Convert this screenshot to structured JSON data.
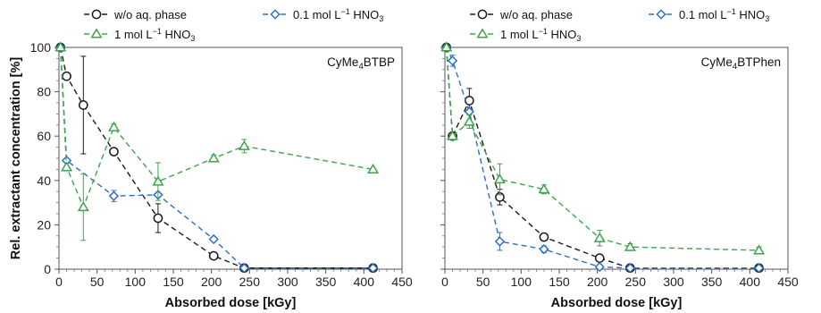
{
  "chart_data": [
    {
      "type": "line",
      "annotation": {
        "text": "CyMe",
        "sub": "4",
        "rest": "BTBP"
      },
      "xlabel": "Absorbed dose [kGy]",
      "ylabel": "Rel. extractant concentration [%]",
      "xlim": [
        0,
        450
      ],
      "ylim": [
        0,
        100
      ],
      "xticks": [
        "0",
        "50",
        "100",
        "150",
        "200",
        "250",
        "300",
        "350",
        "400",
        "450"
      ],
      "yticks": [
        "0",
        "20",
        "40",
        "60",
        "80",
        "100"
      ],
      "grid": false,
      "legend_position": "top",
      "series": [
        {
          "name": "w/o aq. phase",
          "color": "#1a1a1a",
          "marker": "circle",
          "x": [
            2,
            10,
            32,
            72,
            130,
            203,
            243,
            412
          ],
          "y": [
            100,
            87,
            74,
            53,
            23,
            6,
            0.5,
            0.5
          ],
          "err": [
            0,
            0,
            22,
            0,
            6.5,
            0,
            0,
            0
          ]
        },
        {
          "name_parts": [
            "0.1 mol L",
            "−1",
            " HNO",
            "3"
          ],
          "color": "#2e6fc4",
          "marker": "diamond",
          "x": [
            2,
            10,
            72,
            130,
            203,
            243,
            412
          ],
          "y": [
            100,
            49,
            33,
            33.5,
            13.5,
            0.5,
            0.5
          ],
          "err": [
            0,
            0,
            2.5,
            0,
            0,
            0,
            0
          ]
        },
        {
          "name_parts": [
            "1 mol L",
            "−1",
            " HNO",
            "3"
          ],
          "color": "#3fa34d",
          "marker": "triangle",
          "x": [
            2,
            10,
            32,
            72,
            130,
            203,
            243,
            412
          ],
          "y": [
            100,
            46,
            28,
            64,
            39.5,
            50,
            55.5,
            45
          ],
          "err": [
            0,
            0,
            15,
            1.5,
            8.5,
            1.5,
            3,
            0
          ]
        }
      ]
    },
    {
      "type": "line",
      "annotation": {
        "text": "CyMe",
        "sub": "4",
        "rest": "BTPhen"
      },
      "xlabel": "Absorbed dose [kGy]",
      "xlim": [
        0,
        450
      ],
      "ylim": [
        0,
        100
      ],
      "xticks": [
        "0",
        "50",
        "100",
        "150",
        "200",
        "250",
        "300",
        "350",
        "400",
        "450"
      ],
      "grid": false,
      "legend_position": "top",
      "series": [
        {
          "name": "w/o aq. phase",
          "color": "#1a1a1a",
          "marker": "circle",
          "x": [
            2,
            10,
            32,
            72,
            130,
            203,
            243,
            412
          ],
          "y": [
            100,
            60,
            76,
            32.5,
            14.5,
            5,
            0.5,
            0.5
          ],
          "err": [
            0,
            0,
            5.5,
            3.5,
            0,
            0,
            0,
            0
          ]
        },
        {
          "name_parts": [
            "0.1 mol L",
            "−1",
            " HNO",
            "3"
          ],
          "color": "#2e6fc4",
          "marker": "diamond",
          "x": [
            2,
            10,
            32,
            72,
            130,
            203,
            243,
            412
          ],
          "y": [
            100,
            94,
            71,
            12.5,
            9,
            1,
            0.5,
            0.5
          ],
          "err": [
            0,
            2.5,
            0,
            4,
            1.5,
            0,
            0,
            0
          ]
        },
        {
          "name_parts": [
            "1 mol L",
            "−1",
            " HNO",
            "3"
          ],
          "color": "#3fa34d",
          "marker": "triangle",
          "x": [
            2,
            10,
            32,
            72,
            130,
            203,
            243,
            412
          ],
          "y": [
            100,
            60,
            66.5,
            40.5,
            36,
            14,
            10,
            8.5
          ],
          "err": [
            0,
            0,
            3,
            7,
            2,
            3.5,
            1.5,
            1.5
          ]
        }
      ]
    }
  ]
}
